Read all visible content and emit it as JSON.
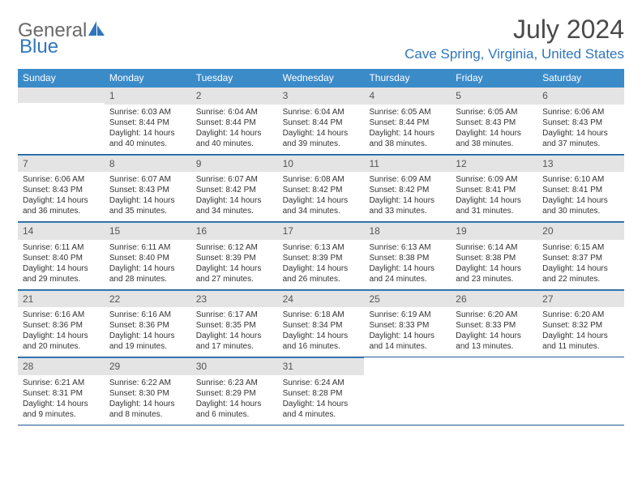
{
  "logo": {
    "general": "General",
    "blue": "Blue",
    "icon_color": "#2f76bb"
  },
  "title": "July 2024",
  "location": "Cave Spring, Virginia, United States",
  "day_names": [
    "Sunday",
    "Monday",
    "Tuesday",
    "Wednesday",
    "Thursday",
    "Friday",
    "Saturday"
  ],
  "colors": {
    "header_bg": "#3b8bc9",
    "header_text": "#ffffff",
    "accent": "#2f76bb",
    "daynum_bg": "#e4e4e4",
    "border": "#1f5a8f"
  },
  "weeks": [
    [
      {
        "num": "",
        "sunrise": "",
        "sunset": "",
        "daylight": ""
      },
      {
        "num": "1",
        "sunrise": "Sunrise: 6:03 AM",
        "sunset": "Sunset: 8:44 PM",
        "daylight": "Daylight: 14 hours and 40 minutes."
      },
      {
        "num": "2",
        "sunrise": "Sunrise: 6:04 AM",
        "sunset": "Sunset: 8:44 PM",
        "daylight": "Daylight: 14 hours and 40 minutes."
      },
      {
        "num": "3",
        "sunrise": "Sunrise: 6:04 AM",
        "sunset": "Sunset: 8:44 PM",
        "daylight": "Daylight: 14 hours and 39 minutes."
      },
      {
        "num": "4",
        "sunrise": "Sunrise: 6:05 AM",
        "sunset": "Sunset: 8:44 PM",
        "daylight": "Daylight: 14 hours and 38 minutes."
      },
      {
        "num": "5",
        "sunrise": "Sunrise: 6:05 AM",
        "sunset": "Sunset: 8:43 PM",
        "daylight": "Daylight: 14 hours and 38 minutes."
      },
      {
        "num": "6",
        "sunrise": "Sunrise: 6:06 AM",
        "sunset": "Sunset: 8:43 PM",
        "daylight": "Daylight: 14 hours and 37 minutes."
      }
    ],
    [
      {
        "num": "7",
        "sunrise": "Sunrise: 6:06 AM",
        "sunset": "Sunset: 8:43 PM",
        "daylight": "Daylight: 14 hours and 36 minutes."
      },
      {
        "num": "8",
        "sunrise": "Sunrise: 6:07 AM",
        "sunset": "Sunset: 8:43 PM",
        "daylight": "Daylight: 14 hours and 35 minutes."
      },
      {
        "num": "9",
        "sunrise": "Sunrise: 6:07 AM",
        "sunset": "Sunset: 8:42 PM",
        "daylight": "Daylight: 14 hours and 34 minutes."
      },
      {
        "num": "10",
        "sunrise": "Sunrise: 6:08 AM",
        "sunset": "Sunset: 8:42 PM",
        "daylight": "Daylight: 14 hours and 34 minutes."
      },
      {
        "num": "11",
        "sunrise": "Sunrise: 6:09 AM",
        "sunset": "Sunset: 8:42 PM",
        "daylight": "Daylight: 14 hours and 33 minutes."
      },
      {
        "num": "12",
        "sunrise": "Sunrise: 6:09 AM",
        "sunset": "Sunset: 8:41 PM",
        "daylight": "Daylight: 14 hours and 31 minutes."
      },
      {
        "num": "13",
        "sunrise": "Sunrise: 6:10 AM",
        "sunset": "Sunset: 8:41 PM",
        "daylight": "Daylight: 14 hours and 30 minutes."
      }
    ],
    [
      {
        "num": "14",
        "sunrise": "Sunrise: 6:11 AM",
        "sunset": "Sunset: 8:40 PM",
        "daylight": "Daylight: 14 hours and 29 minutes."
      },
      {
        "num": "15",
        "sunrise": "Sunrise: 6:11 AM",
        "sunset": "Sunset: 8:40 PM",
        "daylight": "Daylight: 14 hours and 28 minutes."
      },
      {
        "num": "16",
        "sunrise": "Sunrise: 6:12 AM",
        "sunset": "Sunset: 8:39 PM",
        "daylight": "Daylight: 14 hours and 27 minutes."
      },
      {
        "num": "17",
        "sunrise": "Sunrise: 6:13 AM",
        "sunset": "Sunset: 8:39 PM",
        "daylight": "Daylight: 14 hours and 26 minutes."
      },
      {
        "num": "18",
        "sunrise": "Sunrise: 6:13 AM",
        "sunset": "Sunset: 8:38 PM",
        "daylight": "Daylight: 14 hours and 24 minutes."
      },
      {
        "num": "19",
        "sunrise": "Sunrise: 6:14 AM",
        "sunset": "Sunset: 8:38 PM",
        "daylight": "Daylight: 14 hours and 23 minutes."
      },
      {
        "num": "20",
        "sunrise": "Sunrise: 6:15 AM",
        "sunset": "Sunset: 8:37 PM",
        "daylight": "Daylight: 14 hours and 22 minutes."
      }
    ],
    [
      {
        "num": "21",
        "sunrise": "Sunrise: 6:16 AM",
        "sunset": "Sunset: 8:36 PM",
        "daylight": "Daylight: 14 hours and 20 minutes."
      },
      {
        "num": "22",
        "sunrise": "Sunrise: 6:16 AM",
        "sunset": "Sunset: 8:36 PM",
        "daylight": "Daylight: 14 hours and 19 minutes."
      },
      {
        "num": "23",
        "sunrise": "Sunrise: 6:17 AM",
        "sunset": "Sunset: 8:35 PM",
        "daylight": "Daylight: 14 hours and 17 minutes."
      },
      {
        "num": "24",
        "sunrise": "Sunrise: 6:18 AM",
        "sunset": "Sunset: 8:34 PM",
        "daylight": "Daylight: 14 hours and 16 minutes."
      },
      {
        "num": "25",
        "sunrise": "Sunrise: 6:19 AM",
        "sunset": "Sunset: 8:33 PM",
        "daylight": "Daylight: 14 hours and 14 minutes."
      },
      {
        "num": "26",
        "sunrise": "Sunrise: 6:20 AM",
        "sunset": "Sunset: 8:33 PM",
        "daylight": "Daylight: 14 hours and 13 minutes."
      },
      {
        "num": "27",
        "sunrise": "Sunrise: 6:20 AM",
        "sunset": "Sunset: 8:32 PM",
        "daylight": "Daylight: 14 hours and 11 minutes."
      }
    ],
    [
      {
        "num": "28",
        "sunrise": "Sunrise: 6:21 AM",
        "sunset": "Sunset: 8:31 PM",
        "daylight": "Daylight: 14 hours and 9 minutes."
      },
      {
        "num": "29",
        "sunrise": "Sunrise: 6:22 AM",
        "sunset": "Sunset: 8:30 PM",
        "daylight": "Daylight: 14 hours and 8 minutes."
      },
      {
        "num": "30",
        "sunrise": "Sunrise: 6:23 AM",
        "sunset": "Sunset: 8:29 PM",
        "daylight": "Daylight: 14 hours and 6 minutes."
      },
      {
        "num": "31",
        "sunrise": "Sunrise: 6:24 AM",
        "sunset": "Sunset: 8:28 PM",
        "daylight": "Daylight: 14 hours and 4 minutes."
      },
      {
        "num": "",
        "sunrise": "",
        "sunset": "",
        "daylight": ""
      },
      {
        "num": "",
        "sunrise": "",
        "sunset": "",
        "daylight": ""
      },
      {
        "num": "",
        "sunrise": "",
        "sunset": "",
        "daylight": ""
      }
    ]
  ]
}
